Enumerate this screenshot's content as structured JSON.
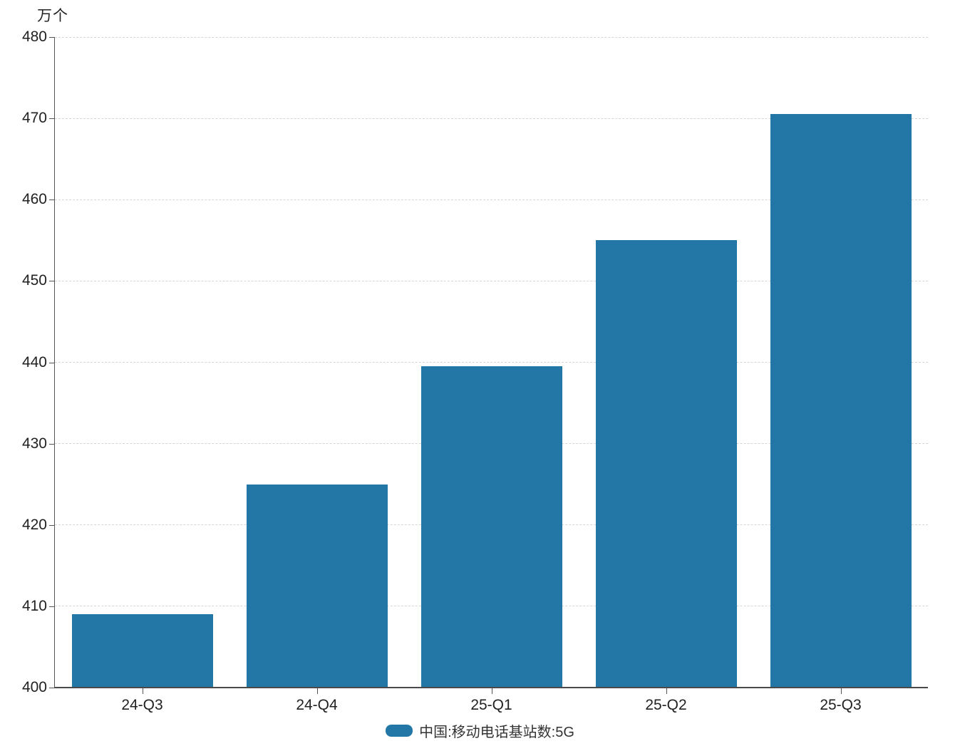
{
  "unit_label": "万个",
  "legend": {
    "label": "中国:移动电话基站数:5G"
  },
  "colors": {
    "bar": "#2377a6",
    "axis": "#555555",
    "grid": "#d6d6d6",
    "text": "#222222"
  },
  "chart_data": {
    "type": "bar",
    "title": "",
    "categories": [
      "24-Q3",
      "24-Q4",
      "25-Q1",
      "25-Q2",
      "25-Q3"
    ],
    "values": [
      409,
      425,
      439.5,
      455,
      470.5
    ],
    "series_name": "中国:移动电话基站数:5G",
    "xlabel": "",
    "ylabel": "万个",
    "ylim": [
      400,
      480
    ],
    "ytick_step": 10,
    "yticks": [
      400,
      410,
      420,
      430,
      440,
      450,
      460,
      470,
      480
    ],
    "grid": true,
    "grid_style": "dashed",
    "legend_position": "bottom",
    "bar_color": "#2377a6"
  }
}
